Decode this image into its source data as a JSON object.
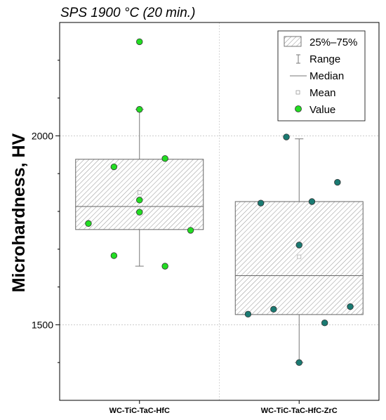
{
  "chart_data": {
    "type": "box",
    "title": "SPS 1900 °C (20 min.)",
    "ylabel": "Microhardness, HV",
    "xlabel": "",
    "ylim": [
      1300,
      2300
    ],
    "yticks": [
      1500,
      2000
    ],
    "minor_yticks": [
      1400,
      1600,
      1700,
      1800,
      1900,
      2100,
      2200
    ],
    "grid": true,
    "legend_position": "top-right",
    "legend": {
      "box": "25%–75%",
      "range": "Range",
      "median": "Median",
      "mean": "Mean",
      "value": "Value"
    },
    "categories": [
      "WC-TiC-TaC-HfC",
      "WC-TiC-TaC-HfC-ZrC"
    ],
    "series": [
      {
        "category": "WC-TiC-TaC-HfC",
        "q1": 1752,
        "q3": 1938,
        "median": 1813,
        "mean": 1850,
        "min": 1655,
        "max": 2070,
        "color": "#22dd22",
        "values": [
          {
            "pos": 0.5,
            "value": 2249
          },
          {
            "pos": 0.5,
            "value": 2070
          },
          {
            "pos": 0.5,
            "value": 1830
          },
          {
            "pos": 0.5,
            "value": 1798
          },
          {
            "pos": 0.3,
            "value": 1918
          },
          {
            "pos": 0.3,
            "value": 1683
          },
          {
            "pos": 0.7,
            "value": 1940
          },
          {
            "pos": 0.7,
            "value": 1655
          },
          {
            "pos": 0.1,
            "value": 1768
          },
          {
            "pos": 0.9,
            "value": 1750
          }
        ]
      },
      {
        "category": "WC-TiC-TaC-HfC-ZrC",
        "q1": 1527,
        "q3": 1826,
        "median": 1630,
        "mean": 1680,
        "min": 1400,
        "max": 1992,
        "color": "#1a7a72",
        "values": [
          {
            "pos": 0.4,
            "value": 1997
          },
          {
            "pos": 0.5,
            "value": 1400
          },
          {
            "pos": 0.5,
            "value": 1711
          },
          {
            "pos": 0.8,
            "value": 1877
          },
          {
            "pos": 0.2,
            "value": 1822
          },
          {
            "pos": 0.6,
            "value": 1826
          },
          {
            "pos": 0.9,
            "value": 1548
          },
          {
            "pos": 0.1,
            "value": 1528
          },
          {
            "pos": 0.3,
            "value": 1541
          },
          {
            "pos": 0.7,
            "value": 1505
          }
        ]
      }
    ]
  }
}
